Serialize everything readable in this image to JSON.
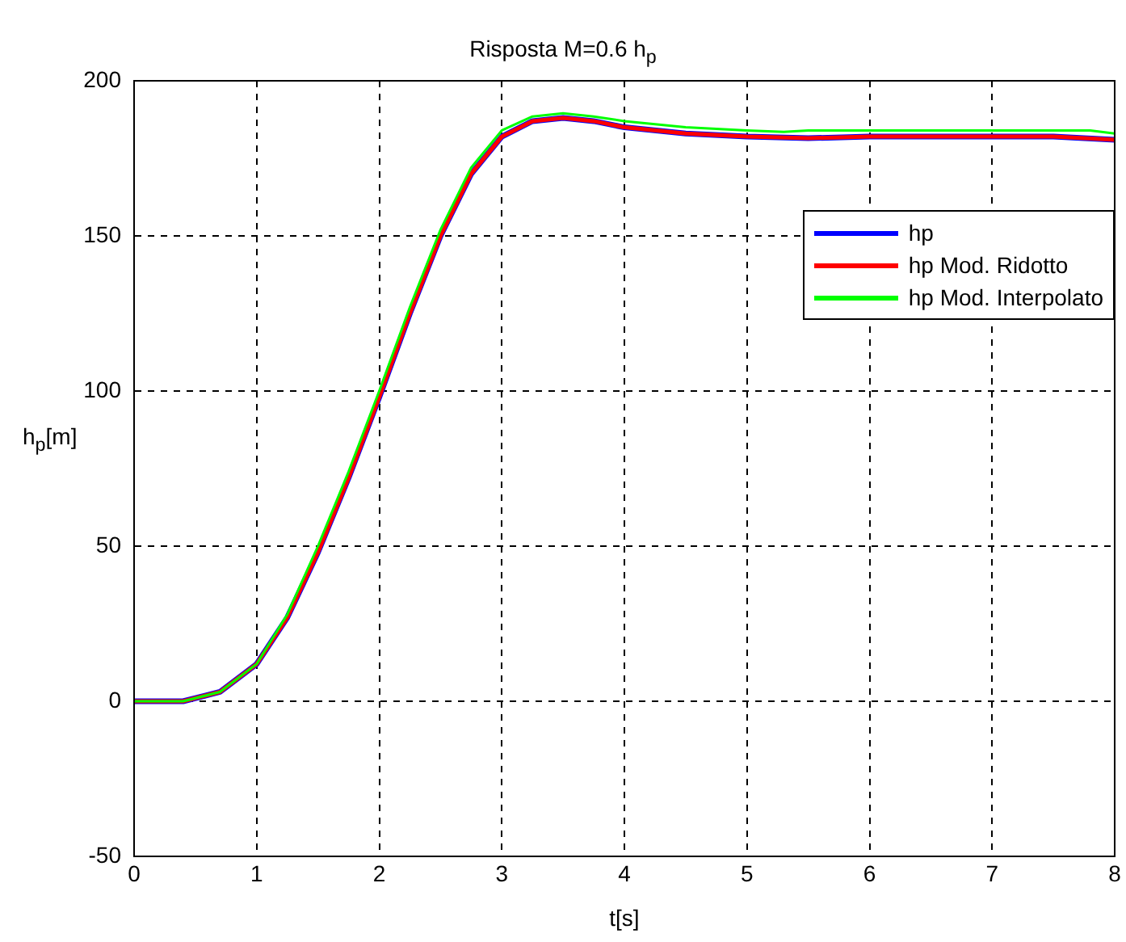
{
  "chart_data": {
    "type": "line",
    "title": "Risposta M=0.6 h$_{p}$",
    "xlabel": "t[s]",
    "ylabel": "h$_{p}$[m]",
    "xlim": [
      0,
      8
    ],
    "xticks": [
      0,
      1,
      2,
      3,
      4,
      5,
      6,
      7,
      8
    ],
    "ylim": [
      -50,
      200
    ],
    "yticks": [
      -50,
      0,
      50,
      100,
      150,
      200
    ],
    "grid": true,
    "legend": "top right",
    "marker": "none",
    "line_style": "solid",
    "series": [
      {
        "name": "hp",
        "color": "#0000ff",
        "x": [
          0,
          0.4,
          0.7,
          1.0,
          1.25,
          1.5,
          1.75,
          2.0,
          2.25,
          2.5,
          2.75,
          3.0,
          3.25,
          3.5,
          3.75,
          4.0,
          4.5,
          5.0,
          5.5,
          6.0,
          7.0,
          7.5,
          8.0
        ],
        "values": [
          0,
          0,
          3,
          12,
          27,
          48,
          72,
          98,
          125,
          150,
          170,
          182,
          187,
          188,
          187,
          185,
          183,
          182,
          181.5,
          182,
          182,
          182,
          181
        ]
      },
      {
        "name": "hp Mod. Ridotto",
        "color": "#ff0000",
        "x": [
          0,
          0.4,
          0.7,
          1.0,
          1.25,
          1.5,
          1.75,
          2.0,
          2.25,
          2.5,
          2.75,
          3.0,
          3.25,
          3.5,
          3.75,
          4.0,
          4.5,
          5.0,
          5.5,
          6.0,
          7.0,
          7.5,
          8.0
        ],
        "values": [
          0,
          0,
          3,
          12,
          27,
          48,
          72,
          98,
          125,
          150,
          170,
          182,
          187,
          188,
          187,
          185,
          183,
          182,
          181.5,
          182,
          182,
          182,
          181
        ]
      },
      {
        "name": "hp Mod. Interpolato",
        "color": "#00ff00",
        "x": [
          0,
          0.4,
          0.7,
          1.0,
          1.25,
          1.5,
          1.75,
          2.0,
          2.25,
          2.5,
          2.75,
          3.0,
          3.25,
          3.5,
          3.75,
          4.0,
          4.5,
          5.0,
          5.3,
          5.5,
          6.0,
          7.0,
          7.8,
          8.0
        ],
        "values": [
          0,
          0,
          3,
          12,
          28,
          50,
          74,
          100,
          127,
          152,
          172,
          184,
          188.5,
          189.5,
          188.5,
          187,
          185,
          184,
          183.5,
          184,
          184,
          184,
          184,
          183
        ]
      }
    ]
  }
}
